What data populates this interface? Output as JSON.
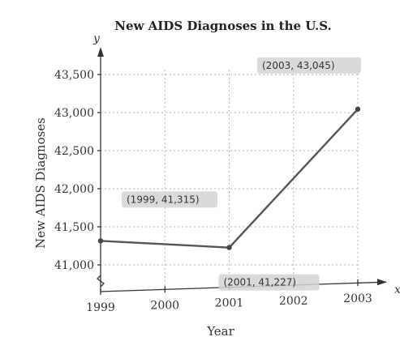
{
  "chart_data": {
    "type": "line",
    "title": "New AIDS Diagnoses in the U.S.",
    "xlabel": "Year",
    "ylabel": "New AIDS Diagnoses",
    "x_axis_var": "x",
    "y_axis_var": "y",
    "x_ticks": [
      "1999",
      "2000",
      "2001",
      "2002",
      "2003"
    ],
    "y_ticks": [
      "41,000",
      "41,500",
      "42,000",
      "42,500",
      "43,000",
      "43,500"
    ],
    "y_tick_values": [
      41000,
      41500,
      42000,
      42500,
      43000,
      43500
    ],
    "xlim": [
      1999,
      2003
    ],
    "ylim": [
      40800,
      43600
    ],
    "grid": true,
    "series": [
      {
        "x": [
          1999,
          2001,
          2003
        ],
        "y": [
          41315,
          41227,
          43045
        ],
        "labels": [
          "(1999, 41,315)",
          "(2001, 41,227)",
          "(2003, 43,045)"
        ]
      }
    ]
  }
}
